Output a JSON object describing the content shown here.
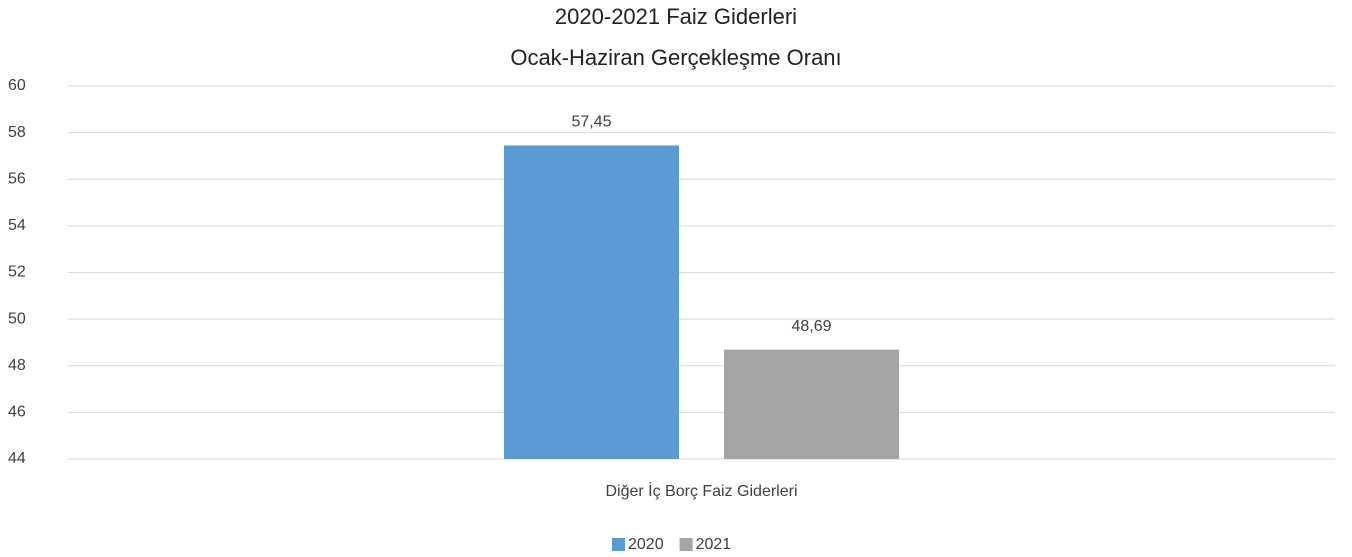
{
  "chart_data": {
    "type": "bar",
    "title": "2020-2021 Faiz Giderleri",
    "subtitle": "Ocak-Haziran Gerçekleşme Oranı",
    "categories": [
      "Diğer İç Borç Faiz Giderleri"
    ],
    "series": [
      {
        "name": "2020",
        "color": "#5b9bd5",
        "values": [
          57.45
        ],
        "value_labels": [
          "57,45"
        ]
      },
      {
        "name": "2021",
        "color": "#a5a5a5",
        "values": [
          48.69
        ],
        "value_labels": [
          "48,69"
        ]
      }
    ],
    "ylim": [
      44,
      60
    ],
    "yticks": [
      44,
      46,
      48,
      50,
      52,
      54,
      56,
      58,
      60
    ],
    "grid": true,
    "legend": "bottom"
  }
}
